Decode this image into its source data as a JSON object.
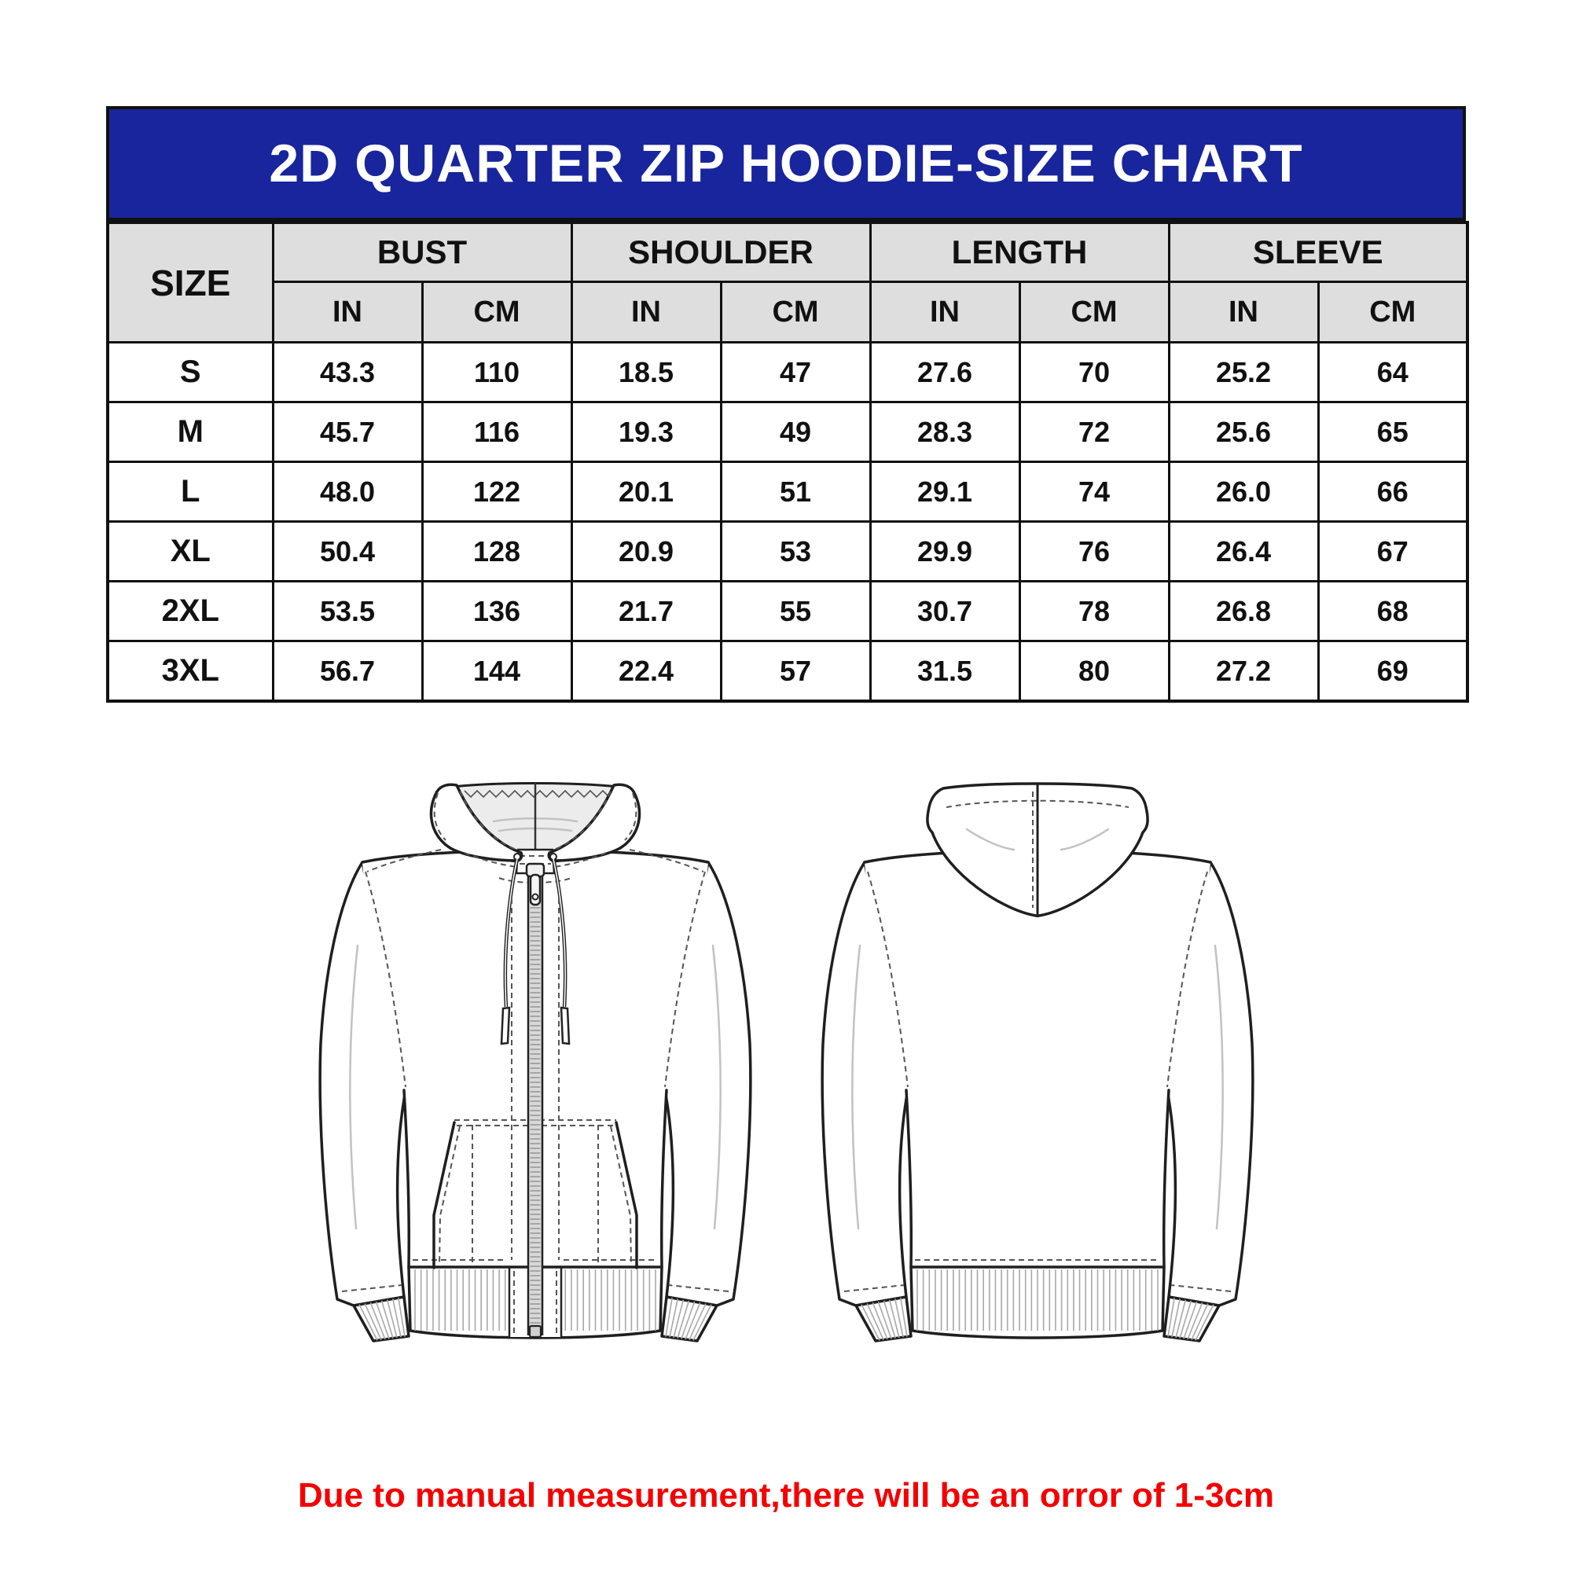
{
  "banner": {
    "title": "2D QUARTER ZIP HOODIE-SIZE CHART"
  },
  "table": {
    "corner_label": "SIZE",
    "group_headers": [
      "BUST",
      "SHOULDER",
      "LENGTH",
      "SLEEVE"
    ],
    "unit_headers": [
      "IN",
      "CM",
      "IN",
      "CM",
      "IN",
      "CM",
      "IN",
      "CM"
    ],
    "rows": [
      {
        "size": "S",
        "values": [
          "43.3",
          "110",
          "18.5",
          "47",
          "27.6",
          "70",
          "25.2",
          "64"
        ]
      },
      {
        "size": "M",
        "values": [
          "45.7",
          "116",
          "19.3",
          "49",
          "28.3",
          "72",
          "25.6",
          "65"
        ]
      },
      {
        "size": "L",
        "values": [
          "48.0",
          "122",
          "20.1",
          "51",
          "29.1",
          "74",
          "26.0",
          "66"
        ]
      },
      {
        "size": "XL",
        "values": [
          "50.4",
          "128",
          "20.9",
          "53",
          "29.9",
          "76",
          "26.4",
          "67"
        ]
      },
      {
        "size": "2XL",
        "values": [
          "53.5",
          "136",
          "21.7",
          "55",
          "30.7",
          "78",
          "26.8",
          "68"
        ]
      },
      {
        "size": "3XL",
        "values": [
          "56.7",
          "144",
          "22.4",
          "57",
          "31.5",
          "80",
          "27.2",
          "69"
        ]
      }
    ]
  },
  "figures": {
    "front": "hoodie-front-flat-sketch",
    "back": "hoodie-back-flat-sketch"
  },
  "note": {
    "text": "Due to manual measurement,there will be an orror of 1-3cm"
  },
  "colors": {
    "banner_bg": "#18259C",
    "banner_text": "#FFFFFF",
    "header_bg": "#DEDEDE",
    "border": "#111111",
    "note_red": "#F40000"
  }
}
